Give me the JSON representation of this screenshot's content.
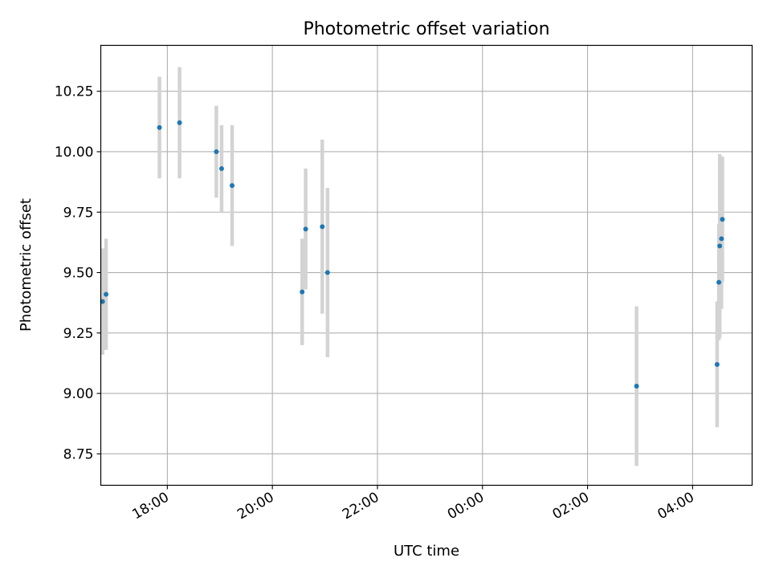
{
  "chart_data": {
    "type": "scatter",
    "title": "Photometric offset variation",
    "xlabel": "UTC time",
    "ylabel": "Photometric offset",
    "xlim": [
      "16:44",
      "05:08 +1d"
    ],
    "ylim": [
      8.62,
      10.44
    ],
    "grid": true,
    "x_ticks": [
      "18:00",
      "20:00",
      "22:00",
      "00:00",
      "02:00",
      "04:00"
    ],
    "y_ticks": [
      "8.75",
      "9.00",
      "9.25",
      "9.50",
      "9.75",
      "10.00",
      "10.25"
    ],
    "point_color": "#1f77b4",
    "errorbar_color": "#d3d3d3",
    "points": [
      {
        "time": "16:46",
        "y": 9.38,
        "err": 0.22
      },
      {
        "time": "16:50",
        "y": 9.41,
        "err": 0.23
      },
      {
        "time": "17:51",
        "y": 10.1,
        "err": 0.21
      },
      {
        "time": "18:14",
        "y": 10.12,
        "err": 0.23
      },
      {
        "time": "18:56",
        "y": 10.0,
        "err": 0.19
      },
      {
        "time": "19:02",
        "y": 9.93,
        "err": 0.18
      },
      {
        "time": "19:14",
        "y": 9.86,
        "err": 0.25
      },
      {
        "time": "20:34",
        "y": 9.42,
        "err": 0.22
      },
      {
        "time": "20:38",
        "y": 9.68,
        "err": 0.25
      },
      {
        "time": "20:57",
        "y": 9.69,
        "err": 0.36
      },
      {
        "time": "21:03",
        "y": 9.5,
        "err": 0.35
      },
      {
        "time": "02:56 +1d",
        "y": 9.03,
        "err": 0.33
      },
      {
        "time": "04:28 +1d",
        "y": 9.12,
        "err": 0.26
      },
      {
        "time": "04:30 +1d",
        "y": 9.46,
        "err": 0.24
      },
      {
        "time": "04:31 +1d",
        "y": 9.61,
        "err": 0.38
      },
      {
        "time": "04:33 +1d",
        "y": 9.64,
        "err": 0.29
      },
      {
        "time": "04:34 +1d",
        "y": 9.72,
        "err": 0.26
      }
    ]
  }
}
